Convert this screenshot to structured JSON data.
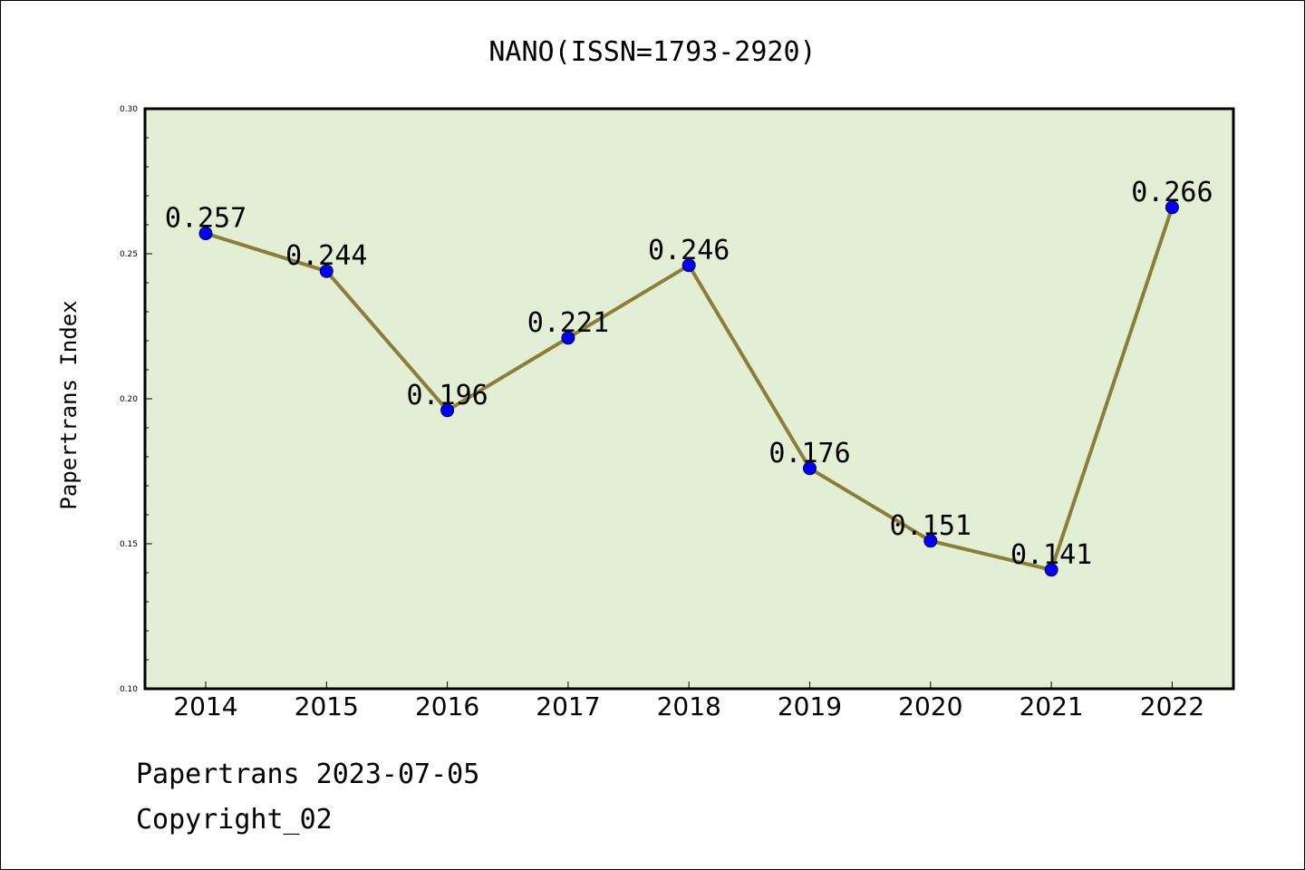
{
  "chart_data": {
    "type": "line",
    "title": "NANO(ISSN=1793-2920)",
    "xlabel": "",
    "ylabel": "Papertrans Index",
    "categories": [
      "2014",
      "2015",
      "2016",
      "2017",
      "2018",
      "2019",
      "2020",
      "2021",
      "2022"
    ],
    "values": [
      0.257,
      0.244,
      0.196,
      0.221,
      0.246,
      0.176,
      0.151,
      0.141,
      0.266
    ],
    "data_labels": [
      "0.257",
      "0.244",
      "0.196",
      "0.221",
      "0.246",
      "0.176",
      "0.151",
      "0.141",
      "0.266"
    ],
    "ylim": [
      0.1,
      0.3
    ],
    "yticks": [
      "0.10",
      "0.15",
      "0.20",
      "0.25",
      "0.30"
    ],
    "grid": false,
    "colors": {
      "plot_background": "#e2efd5",
      "line": "#8b7d3a",
      "marker": "#0000ff"
    }
  },
  "footer": {
    "line1": "Papertrans 2023-07-05",
    "line2": "Copyright_02"
  }
}
